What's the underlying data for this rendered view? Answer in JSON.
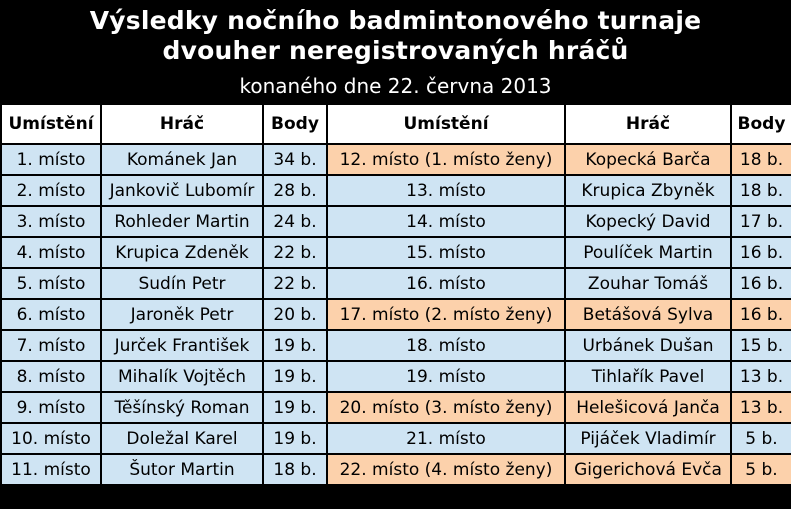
{
  "title_line1": "Výsledky nočního badmintonového turnaje",
  "title_line2": "dvouher neregistrovaných hráčů",
  "subtitle": "konaného dne 22. června 2013",
  "headers": [
    "Umístění",
    "Hráč",
    "Body",
    "Umístění",
    "Hráč",
    "Body"
  ],
  "rows": [
    {
      "l": [
        "1. místo",
        "Kománek Jan",
        "34 b."
      ],
      "r": [
        "12. místo (1. místo ženy)",
        "Kopecká Barča",
        "18 b."
      ],
      "rf": true
    },
    {
      "l": [
        "2. místo",
        "Jankovič Lubomír",
        "28 b."
      ],
      "r": [
        "13. místo",
        "Krupica Zbyněk",
        "18 b."
      ],
      "rf": false
    },
    {
      "l": [
        "3. místo",
        "Rohleder Martin",
        "24 b."
      ],
      "r": [
        "14. místo",
        "Kopecký David",
        "17 b."
      ],
      "rf": false
    },
    {
      "l": [
        "4. místo",
        "Krupica Zdeněk",
        "22 b."
      ],
      "r": [
        "15. místo",
        "Poulíček Martin",
        "16 b."
      ],
      "rf": false
    },
    {
      "l": [
        "5. místo",
        "Sudín Petr",
        "22 b."
      ],
      "r": [
        "16. místo",
        "Zouhar Tomáš",
        "16 b."
      ],
      "rf": false
    },
    {
      "l": [
        "6. místo",
        "Jaroněk Petr",
        "20 b."
      ],
      "r": [
        "17. místo (2. místo ženy)",
        "Betášová Sylva",
        "16 b."
      ],
      "rf": true
    },
    {
      "l": [
        "7. místo",
        "Jurček František",
        "19 b."
      ],
      "r": [
        "18. místo",
        "Urbánek Dušan",
        "15 b."
      ],
      "rf": false
    },
    {
      "l": [
        "8. místo",
        "Mihalík Vojtěch",
        "19 b."
      ],
      "r": [
        "19. místo",
        "Tihlařík Pavel",
        "13 b."
      ],
      "rf": false
    },
    {
      "l": [
        "9. místo",
        "Těšínský Roman",
        "19 b."
      ],
      "r": [
        "20. místo (3. místo ženy)",
        "Helešicová Janča",
        "13 b."
      ],
      "rf": true
    },
    {
      "l": [
        "10. místo",
        "Doležal Karel",
        "19 b."
      ],
      "r": [
        "21. místo",
        "Pijáček Vladimír",
        "5 b."
      ],
      "rf": false
    },
    {
      "l": [
        "11. místo",
        "Šutor Martin",
        "18 b."
      ],
      "r": [
        "22. místo (4. místo ženy)",
        "Gigerichová Evča",
        "5 b."
      ],
      "rf": true
    }
  ],
  "colors": {
    "men_cell": "#cfe4f3",
    "women_cell": "#fcd1ab",
    "header_bg": "#000000"
  }
}
